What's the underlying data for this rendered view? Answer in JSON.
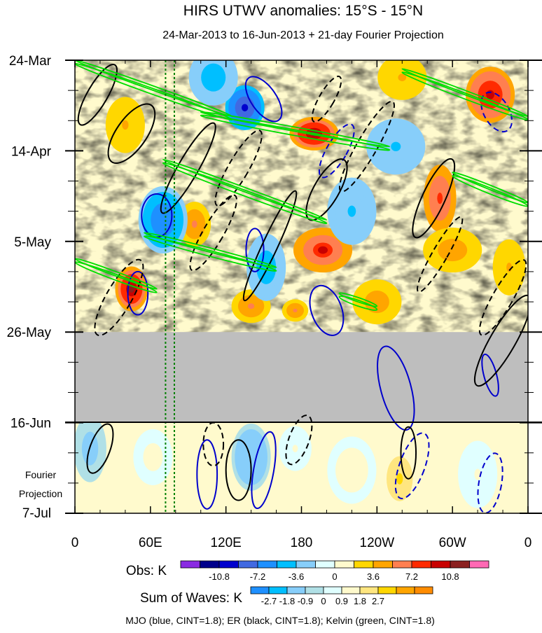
{
  "chart_data": {
    "type": "heatmap",
    "title": "HIRS UTWV anomalies: 15°S - 15°N",
    "subtitle": "24-Mar-2013 to 16-Jun-2013 + 21-day Fourier Projection",
    "x_tick_labels": [
      "0",
      "60E",
      "120E",
      "180",
      "120W",
      "60W",
      "0"
    ],
    "x_ticks_deg": [
      0,
      60,
      120,
      180,
      240,
      300,
      360
    ],
    "xlim": [
      0,
      360
    ],
    "y_tick_labels": [
      "24-Mar",
      "14-Apr",
      "5-May",
      "26-May",
      "16-Jun",
      "7-Jul"
    ],
    "y_ticks_day": [
      0,
      21,
      42,
      63,
      84,
      105
    ],
    "ylim_day": [
      0,
      105
    ],
    "obs_end_day": 63,
    "projection_start_day": 84,
    "projection_label_line1": "Fourier",
    "projection_label_line2": "Projection",
    "missing_fill_color": "#bebebe",
    "obs_colorbar": {
      "label": "Obs: K",
      "colors": [
        "#8a2be2",
        "#00008b",
        "#0000cd",
        "#4169e1",
        "#1e90ff",
        "#00bfff",
        "#87cefa",
        "#e0ffff",
        "#fffacd",
        "#ffd700",
        "#ffa500",
        "#ff7f50",
        "#ff2a00",
        "#c80000",
        "#8b2020",
        "#ff69b4"
      ],
      "tick_labels": [
        "-10.8",
        "-7.2",
        "-3.6",
        "0",
        "3.6",
        "7.2",
        "10.8"
      ],
      "tick_positions": [
        2,
        4,
        6,
        8,
        10,
        12,
        14
      ]
    },
    "waves_colorbar": {
      "label": "Sum of Waves: K",
      "colors": [
        "#1e90ff",
        "#00bfff",
        "#87cefa",
        "#b0e0e6",
        "#e0ffff",
        "#fffacd",
        "#ffe680",
        "#ffd700",
        "#ffa500",
        "#ff8c00"
      ],
      "tick_labels": [
        "-2.7",
        "-1.8",
        "-0.9",
        "0",
        "0.9",
        "1.8",
        "2.7"
      ],
      "tick_positions": [
        1,
        2,
        3,
        4,
        5,
        6,
        7
      ]
    },
    "series": [
      {
        "name": "MJO (blue, CINT=1.8)",
        "color": "#0000cc"
      },
      {
        "name": "ER (black, CINT=1.8)",
        "color": "#000000"
      },
      {
        "name": "Kelvin (green, CINT=1.8)",
        "color": "#00dd00"
      }
    ],
    "footer": "MJO (blue, CINT=1.8); ER (black, CINT=1.8); Kelvin (green, CINT=1.8)",
    "reference_lines_deg": [
      72,
      79
    ],
    "reference_line_color": "#008000",
    "anomaly_centers": [
      {
        "lon": 45,
        "day": 53,
        "value": 11,
        "radius_lon": 10,
        "radius_day": 4
      },
      {
        "lon": 190,
        "day": 17,
        "value": 11,
        "radius_lon": 15,
        "radius_day": 3
      },
      {
        "lon": 197,
        "day": 44,
        "value": 9,
        "radius_lon": 18,
        "radius_day": 4
      },
      {
        "lon": 290,
        "day": 32,
        "value": 8,
        "radius_lon": 10,
        "radius_day": 6
      },
      {
        "lon": 330,
        "day": 8,
        "value": 10,
        "radius_lon": 15,
        "radius_day": 5
      },
      {
        "lon": 300,
        "day": 44,
        "value": 5,
        "radius_lon": 18,
        "radius_day": 4
      },
      {
        "lon": 95,
        "day": 38,
        "value": 6,
        "radius_lon": 10,
        "radius_day": 4
      },
      {
        "lon": 140,
        "day": 57,
        "value": 6,
        "radius_lon": 12,
        "radius_day": 3
      },
      {
        "lon": 175,
        "day": 58,
        "value": 6,
        "radius_lon": 8,
        "radius_day": 2
      },
      {
        "lon": 240,
        "day": 56,
        "value": 5,
        "radius_lon": 15,
        "radius_day": 4
      },
      {
        "lon": 135,
        "day": 11,
        "value": -10,
        "radius_lon": 12,
        "radius_day": 4
      },
      {
        "lon": 110,
        "day": 4,
        "value": -5,
        "radius_lon": 15,
        "radius_day": 5
      },
      {
        "lon": 70,
        "day": 37,
        "value": -7,
        "radius_lon": 15,
        "radius_day": 6
      },
      {
        "lon": 152,
        "day": 48,
        "value": -5,
        "radius_lon": 12,
        "radius_day": 6
      },
      {
        "lon": 255,
        "day": 20,
        "value": -4,
        "radius_lon": 18,
        "radius_day": 5
      },
      {
        "lon": 40,
        "day": 15,
        "value": 4,
        "radius_lon": 12,
        "radius_day": 5
      },
      {
        "lon": 260,
        "day": 4,
        "value": 4,
        "radius_lon": 15,
        "radius_day": 4
      },
      {
        "lon": 220,
        "day": 35,
        "value": -4,
        "radius_lon": 15,
        "radius_day": 6
      },
      {
        "lon": 345,
        "day": 48,
        "value": 4,
        "radius_lon": 10,
        "radius_day": 5
      }
    ],
    "projection_centers": [
      {
        "lon": 258,
        "day": 97,
        "value": 2.7,
        "radius_lon": 12,
        "radius_day": 6
      },
      {
        "lon": 140,
        "day": 92,
        "value": -1.8,
        "radius_lon": 12,
        "radius_day": 6
      },
      {
        "lon": 62,
        "day": 92,
        "value": 1.2,
        "radius_lon": 12,
        "radius_day": 5
      },
      {
        "lon": 220,
        "day": 95,
        "value": 1.5,
        "radius_lon": 15,
        "radius_day": 6
      },
      {
        "lon": 320,
        "day": 96,
        "value": 1.0,
        "radius_lon": 12,
        "radius_day": 6
      },
      {
        "lon": 12,
        "day": 90,
        "value": -1.2,
        "radius_lon": 10,
        "radius_day": 6
      },
      {
        "lon": 175,
        "day": 90,
        "value": 1.0,
        "radius_lon": 10,
        "radius_day": 4
      }
    ],
    "contours": {
      "mjo": [
        {
          "lon": 150,
          "day": 9,
          "radius_lon": 10,
          "radius_day": 6,
          "tilt": -35,
          "style": "solid"
        },
        {
          "lon": 143,
          "day": 44,
          "radius_lon": 7,
          "radius_day": 5,
          "style": "solid"
        },
        {
          "lon": 200,
          "day": 58,
          "radius_lon": 12,
          "radius_day": 6,
          "tilt": -20,
          "style": "solid"
        },
        {
          "lon": 255,
          "day": 76,
          "radius_lon": 12,
          "radius_day": 10,
          "tilt": -15,
          "style": "solid"
        },
        {
          "lon": 330,
          "day": 73,
          "radius_lon": 5,
          "radius_day": 5,
          "tilt": -15,
          "style": "solid"
        },
        {
          "lon": 150,
          "day": 95,
          "radius_lon": 8,
          "radius_day": 9,
          "tilt": 10,
          "style": "solid"
        },
        {
          "lon": 268,
          "day": 94,
          "radius_lon": 10,
          "radius_day": 8,
          "tilt": 20,
          "style": "dashed"
        },
        {
          "lon": 330,
          "day": 98,
          "radius_lon": 9,
          "radius_day": 7,
          "tilt": 10,
          "style": "dashed"
        },
        {
          "lon": 105,
          "day": 96,
          "radius_lon": 8,
          "radius_day": 8,
          "style": "solid"
        },
        {
          "lon": 65,
          "day": 36,
          "radius_lon": 12,
          "radius_day": 5,
          "style": "solid"
        },
        {
          "lon": 50,
          "day": 54,
          "radius_lon": 8,
          "radius_day": 5,
          "style": "solid"
        },
        {
          "lon": 335,
          "day": 12,
          "radius_lon": 10,
          "radius_day": 5,
          "tilt": -30,
          "style": "dashed"
        },
        {
          "lon": 208,
          "day": 21,
          "radius_lon": 8,
          "radius_day": 7,
          "tilt": 30,
          "style": "dashed"
        }
      ],
      "er": [
        {
          "lon": 90,
          "day": 25,
          "radius_lon": 8,
          "radius_day": 12,
          "tilt": 30,
          "style": "solid"
        },
        {
          "lon": 45,
          "day": 17,
          "radius_lon": 12,
          "radius_day": 8,
          "tilt": 35,
          "style": "solid"
        },
        {
          "lon": 18,
          "day": 8,
          "radius_lon": 8,
          "radius_day": 8,
          "tilt": 30,
          "style": "solid"
        },
        {
          "lon": 155,
          "day": 43,
          "radius_lon": 6,
          "radius_day": 14,
          "tilt": 25,
          "style": "solid"
        },
        {
          "lon": 200,
          "day": 30,
          "radius_lon": 10,
          "radius_day": 8,
          "tilt": 30,
          "style": "solid"
        },
        {
          "lon": 285,
          "day": 32,
          "radius_lon": 9,
          "radius_day": 10,
          "tilt": 25,
          "style": "solid"
        },
        {
          "lon": 232,
          "day": 20,
          "radius_lon": 8,
          "radius_day": 12,
          "tilt": 30,
          "style": "dashed"
        },
        {
          "lon": 290,
          "day": 45,
          "radius_lon": 6,
          "radius_day": 10,
          "tilt": 30,
          "style": "dashed"
        },
        {
          "lon": 340,
          "day": 55,
          "radius_lon": 8,
          "radius_day": 10,
          "tilt": 30,
          "style": "dashed"
        },
        {
          "lon": 340,
          "day": 65,
          "radius_lon": 10,
          "radius_day": 12,
          "tilt": 30,
          "style": "solid"
        },
        {
          "lon": 130,
          "day": 25,
          "radius_lon": 8,
          "radius_day": 10,
          "tilt": 30,
          "style": "dashed"
        },
        {
          "lon": 110,
          "day": 40,
          "radius_lon": 8,
          "radius_day": 10,
          "tilt": 30,
          "style": "dashed"
        },
        {
          "lon": 35,
          "day": 55,
          "radius_lon": 10,
          "radius_day": 10,
          "tilt": 30,
          "style": "dashed"
        },
        {
          "lon": 130,
          "day": 95,
          "radius_lon": 10,
          "radius_day": 7,
          "style": "solid"
        },
        {
          "lon": 110,
          "day": 89,
          "radius_lon": 8,
          "radius_day": 5,
          "style": "dashed"
        },
        {
          "lon": 265,
          "day": 91,
          "radius_lon": 6,
          "radius_day": 6,
          "style": "solid"
        },
        {
          "lon": 178,
          "day": 88,
          "radius_lon": 8,
          "radius_day": 6,
          "tilt": 20,
          "style": "dashed"
        },
        {
          "lon": 20,
          "day": 90,
          "radius_lon": 8,
          "radius_day": 6,
          "tilt": 20,
          "style": "solid"
        },
        {
          "lon": 200,
          "day": 9,
          "radius_lon": 6,
          "radius_day": 6,
          "tilt": 30,
          "style": "dashed"
        }
      ],
      "kelvin": [
        {
          "lon_start": 0,
          "lon_end": 125,
          "day_start": 0,
          "day_end": 13
        },
        {
          "lon_start": 100,
          "lon_end": 250,
          "day_start": 12,
          "day_end": 20
        },
        {
          "lon_start": 70,
          "lon_end": 200,
          "day_start": 23,
          "day_end": 37
        },
        {
          "lon_start": 55,
          "lon_end": 160,
          "day_start": 40,
          "day_end": 48
        },
        {
          "lon_start": 0,
          "lon_end": 65,
          "day_start": 46,
          "day_end": 53
        },
        {
          "lon_start": 260,
          "lon_end": 360,
          "day_start": 2,
          "day_end": 13
        },
        {
          "lon_start": 300,
          "lon_end": 360,
          "day_start": 26,
          "day_end": 33
        },
        {
          "lon_start": 210,
          "lon_end": 240,
          "day_start": 54,
          "day_end": 57
        }
      ]
    }
  }
}
